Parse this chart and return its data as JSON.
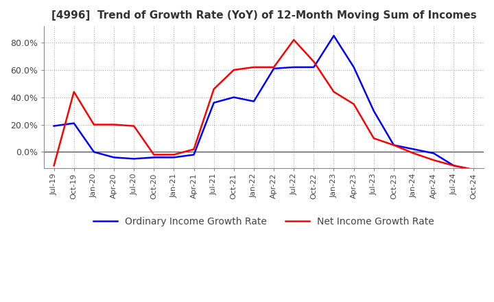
{
  "title": "[4996]  Trend of Growth Rate (YoY) of 12-Month Moving Sum of Incomes",
  "title_fontsize": 11,
  "ordinary_color": "#0000FF",
  "net_color": "#FF0000",
  "background_color": "#FFFFFF",
  "grid_color": "#AAAAAA",
  "legend_labels": [
    "Ordinary Income Growth Rate",
    "Net Income Growth Rate"
  ],
  "x_labels": [
    "Jul-19",
    "Oct-19",
    "Jan-20",
    "Apr-20",
    "Jul-20",
    "Oct-20",
    "Jan-21",
    "Apr-21",
    "Jul-21",
    "Oct-21",
    "Jan-22",
    "Apr-22",
    "Jul-22",
    "Oct-22",
    "Jan-23",
    "Apr-23",
    "Jul-23",
    "Oct-23",
    "Jan-24",
    "Apr-24",
    "Jul-24",
    "Oct-24"
  ],
  "ordinary_values": [
    0.19,
    0.21,
    0.0,
    -0.04,
    -0.05,
    -0.04,
    -0.04,
    -0.02,
    0.36,
    0.4,
    0.37,
    0.61,
    0.62,
    0.62,
    0.85,
    0.62,
    0.3,
    0.05,
    0.02,
    -0.01,
    -0.1,
    -0.13
  ],
  "net_values": [
    -0.1,
    0.44,
    0.2,
    0.2,
    0.19,
    -0.02,
    -0.02,
    0.02,
    0.46,
    0.6,
    0.62,
    0.62,
    0.82,
    0.66,
    0.44,
    0.35,
    0.1,
    0.05,
    -0.01,
    -0.06,
    -0.1,
    -0.13
  ],
  "ylim": [
    -0.12,
    0.92
  ],
  "yticks": [
    0.0,
    0.2,
    0.4,
    0.6,
    0.8
  ],
  "ytick_labels": [
    "0.0%",
    "20.0%",
    "40.0%",
    "60.0%",
    "80.0%"
  ]
}
